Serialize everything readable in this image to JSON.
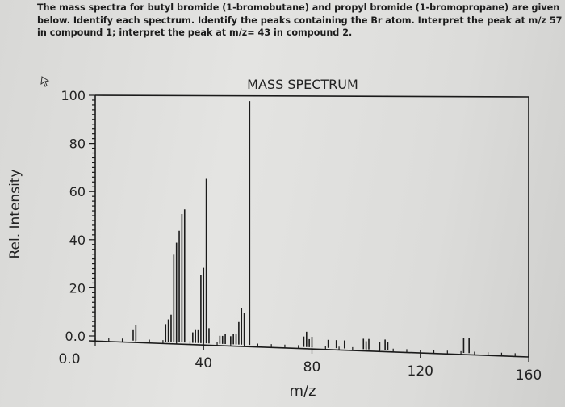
{
  "question": {
    "lines": [
      "The mass spectra for butyl bromide (1-bromobutane) and propyl bromide (1-bromopropane) are given",
      "below. Identify each spectrum.  Identify the peaks containing the Br atom.  Interpret the peak at m/z 57",
      "in compound 1; interpret the peak at m/z= 43 in compound 2."
    ]
  },
  "chart_data": {
    "type": "bar",
    "title": "MASS SPECTRUM",
    "xlabel": "m/z",
    "ylabel": "Rel. Intensity",
    "xlim": [
      0,
      160
    ],
    "ylim": [
      0,
      100
    ],
    "x_ticks": [
      "0.0",
      "40",
      "80",
      "120",
      "160"
    ],
    "y_ticks": [
      "0.0",
      "20",
      "40",
      "60",
      "80",
      "100"
    ],
    "grid": false,
    "peaks": [
      {
        "x": 14,
        "y": 3
      },
      {
        "x": 15,
        "y": 5
      },
      {
        "x": 26,
        "y": 6
      },
      {
        "x": 27,
        "y": 8
      },
      {
        "x": 28,
        "y": 10
      },
      {
        "x": 29,
        "y": 35
      },
      {
        "x": 30,
        "y": 40
      },
      {
        "x": 31,
        "y": 45
      },
      {
        "x": 32,
        "y": 52
      },
      {
        "x": 33,
        "y": 54
      },
      {
        "x": 36,
        "y": 3
      },
      {
        "x": 37,
        "y": 4
      },
      {
        "x": 38,
        "y": 4
      },
      {
        "x": 39,
        "y": 27
      },
      {
        "x": 40,
        "y": 30
      },
      {
        "x": 41,
        "y": 67
      },
      {
        "x": 42,
        "y": 5
      },
      {
        "x": 46,
        "y": 2
      },
      {
        "x": 47,
        "y": 2
      },
      {
        "x": 48,
        "y": 3
      },
      {
        "x": 50,
        "y": 2
      },
      {
        "x": 51,
        "y": 3
      },
      {
        "x": 52,
        "y": 3
      },
      {
        "x": 53,
        "y": 8
      },
      {
        "x": 54,
        "y": 14
      },
      {
        "x": 55,
        "y": 12
      },
      {
        "x": 57,
        "y": 100
      },
      {
        "x": 77,
        "y": 3
      },
      {
        "x": 78,
        "y": 5
      },
      {
        "x": 79,
        "y": 2
      },
      {
        "x": 80,
        "y": 3
      },
      {
        "x": 86,
        "y": 2
      },
      {
        "x": 89,
        "y": 2
      },
      {
        "x": 92,
        "y": 2
      },
      {
        "x": 99,
        "y": 3
      },
      {
        "x": 100,
        "y": 2
      },
      {
        "x": 101,
        "y": 3
      },
      {
        "x": 105,
        "y": 2
      },
      {
        "x": 107,
        "y": 3
      },
      {
        "x": 108,
        "y": 2
      },
      {
        "x": 136,
        "y": 5
      },
      {
        "x": 138,
        "y": 5
      }
    ]
  }
}
